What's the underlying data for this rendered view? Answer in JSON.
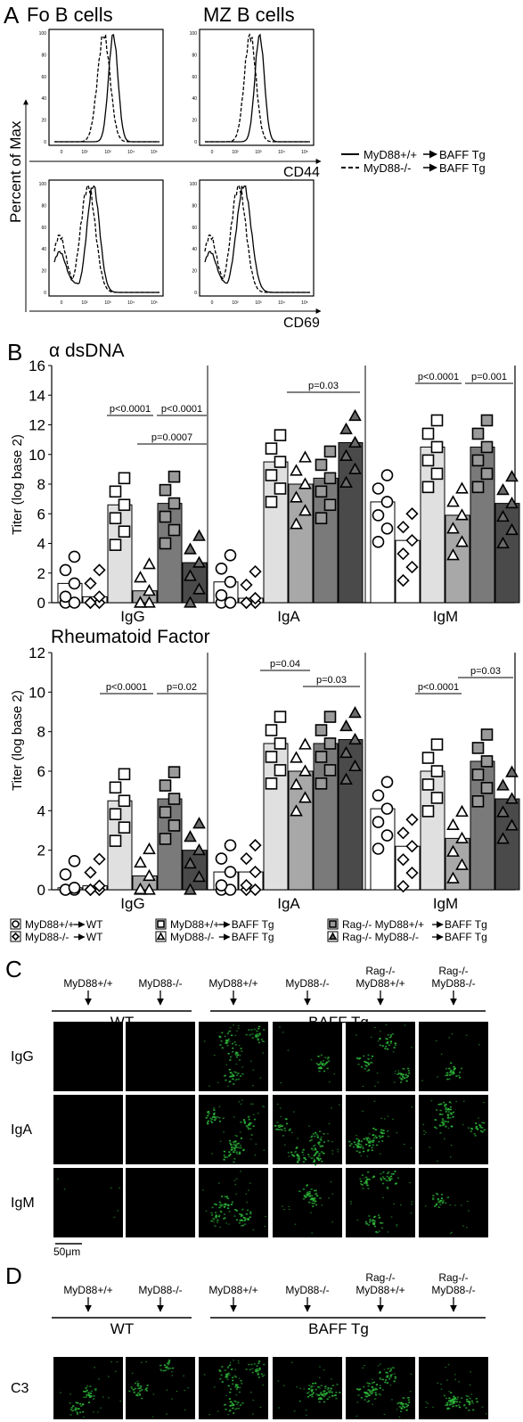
{
  "panels": {
    "A": "A",
    "B": "B",
    "C": "C",
    "D": "D"
  },
  "panel_a": {
    "col_titles": [
      "Fo B cells",
      "MZ B cells"
    ],
    "ylabel": "Percent of Max",
    "row_xlabels": [
      "CD44",
      "CD69"
    ],
    "y_ticks": [
      "0",
      "20",
      "40",
      "60",
      "80",
      "100"
    ],
    "x_ticks": [
      "0",
      "10²",
      "10³",
      "10⁴",
      "10⁵"
    ],
    "legend": [
      {
        "label": "MyD88+/+",
        "target": "BAFF Tg",
        "style": "solid"
      },
      {
        "label": "MyD88-/-",
        "target": "BAFF Tg",
        "style": "dashed"
      }
    ],
    "histograms": [
      {
        "panel": "Fo B CD44",
        "solid_peak": "10³",
        "dashed_peak": "10^2.8"
      },
      {
        "panel": "MZ B CD44",
        "solid_peak": "10³",
        "dashed_peak": "10^2.6"
      },
      {
        "panel": "Fo B CD69",
        "solid_peak": "10^2.7",
        "dashed_peak": "10^2.5"
      },
      {
        "panel": "MZ B CD69",
        "solid_peak": "10^2.7",
        "dashed_peak": "10^2.5"
      }
    ]
  },
  "chart_data": [
    {
      "type": "bar",
      "title": "α dsDNA",
      "ylabel": "Titer (log base 2)",
      "ylim": [
        0,
        16
      ],
      "yticks": [
        0,
        2,
        4,
        6,
        8,
        10,
        12,
        14,
        16
      ],
      "groups": [
        "IgG",
        "IgA",
        "IgM"
      ],
      "series_order": [
        "MyD88+/+ →WT",
        "MyD88-/- →WT",
        "MyD88+/+ →BAFF Tg",
        "MyD88-/- →BAFF Tg",
        "Rag-/- MyD88+/+→BAFF Tg",
        "Rag-/- MyD88-/-→BAFF Tg"
      ],
      "values": {
        "IgG": [
          1.3,
          0.4,
          6.6,
          0.8,
          6.7,
          2.7
        ],
        "IgA": [
          1.4,
          0.3,
          9.5,
          8.0,
          8.4,
          10.8
        ],
        "IgM": [
          6.8,
          4.2,
          10.5,
          5.9,
          10.5,
          6.7
        ]
      },
      "pvalues": [
        {
          "group": "IgG",
          "text": "p<0.0001"
        },
        {
          "group": "IgG",
          "text": "p<0.0001"
        },
        {
          "group": "IgG",
          "text": "p=0.0007"
        },
        {
          "group": "IgA",
          "text": "p=0.03"
        },
        {
          "group": "IgM",
          "text": "p<0.0001"
        },
        {
          "group": "IgM",
          "text": "p=0.001"
        }
      ]
    },
    {
      "type": "bar",
      "title": "Rheumatoid Factor",
      "ylabel": "Titer (log base 2)",
      "ylim": [
        0,
        12
      ],
      "yticks": [
        0,
        2,
        4,
        6,
        8,
        10,
        12
      ],
      "groups": [
        "IgG",
        "IgA",
        "IgM"
      ],
      "series_order": [
        "MyD88+/+ →WT",
        "MyD88-/- →WT",
        "MyD88+/+ →BAFF Tg",
        "MyD88-/- →BAFF Tg",
        "Rag-/- MyD88+/+→BAFF Tg",
        "Rag-/- MyD88-/-→BAFF Tg"
      ],
      "values": {
        "IgG": [
          0.1,
          0.2,
          4.5,
          0.7,
          4.6,
          2.0
        ],
        "IgA": [
          0.9,
          0.9,
          7.4,
          6.0,
          7.4,
          7.6
        ],
        "IgM": [
          4.1,
          2.2,
          6.0,
          2.6,
          6.5,
          4.6
        ]
      },
      "pvalues": [
        {
          "group": "IgG",
          "text": "p<0.0001"
        },
        {
          "group": "IgG",
          "text": "p=0.02"
        },
        {
          "group": "IgA",
          "text": "p=0.04"
        },
        {
          "group": "IgA",
          "text": "p=0.03"
        },
        {
          "group": "IgM",
          "text": "p<0.0001"
        },
        {
          "group": "IgM",
          "text": "p=0.03"
        }
      ]
    }
  ],
  "panel_b_legend": [
    {
      "label": "MyD88+/+",
      "target": "WT"
    },
    {
      "label": "MyD88-/-",
      "target": "WT"
    },
    {
      "label": "MyD88+/+",
      "target": "BAFF Tg"
    },
    {
      "label": "MyD88-/-",
      "target": "BAFF Tg"
    },
    {
      "label": "Rag-/- MyD88+/+",
      "target": "BAFF Tg"
    },
    {
      "label": "Rag-/- MyD88-/-",
      "target": "BAFF Tg"
    }
  ],
  "panel_c": {
    "col_labels": [
      {
        "line1": "",
        "line2": "MyD88+/+"
      },
      {
        "line1": "",
        "line2": "MyD88-/-"
      },
      {
        "line1": "",
        "line2": "MyD88+/+"
      },
      {
        "line1": "",
        "line2": "MyD88-/-"
      },
      {
        "line1": "Rag-/-",
        "line2": "MyD88+/+"
      },
      {
        "line1": "Rag-/-",
        "line2": "MyD88-/-"
      }
    ],
    "group_labels": [
      "WT",
      "BAFF Tg"
    ],
    "row_labels": [
      "IgG",
      "IgA",
      "IgM"
    ],
    "scale_bar": "50μm",
    "accent": "#2db83a"
  },
  "panel_d": {
    "col_labels": [
      {
        "line1": "",
        "line2": "MyD88+/+"
      },
      {
        "line1": "",
        "line2": "MyD88-/-"
      },
      {
        "line1": "",
        "line2": "MyD88+/+"
      },
      {
        "line1": "",
        "line2": "MyD88-/-"
      },
      {
        "line1": "Rag-/-",
        "line2": "MyD88+/+"
      },
      {
        "line1": "Rag-/-",
        "line2": "MyD88-/-"
      }
    ],
    "group_labels": [
      "WT",
      "BAFF Tg"
    ],
    "row_labels": [
      "C3"
    ]
  }
}
